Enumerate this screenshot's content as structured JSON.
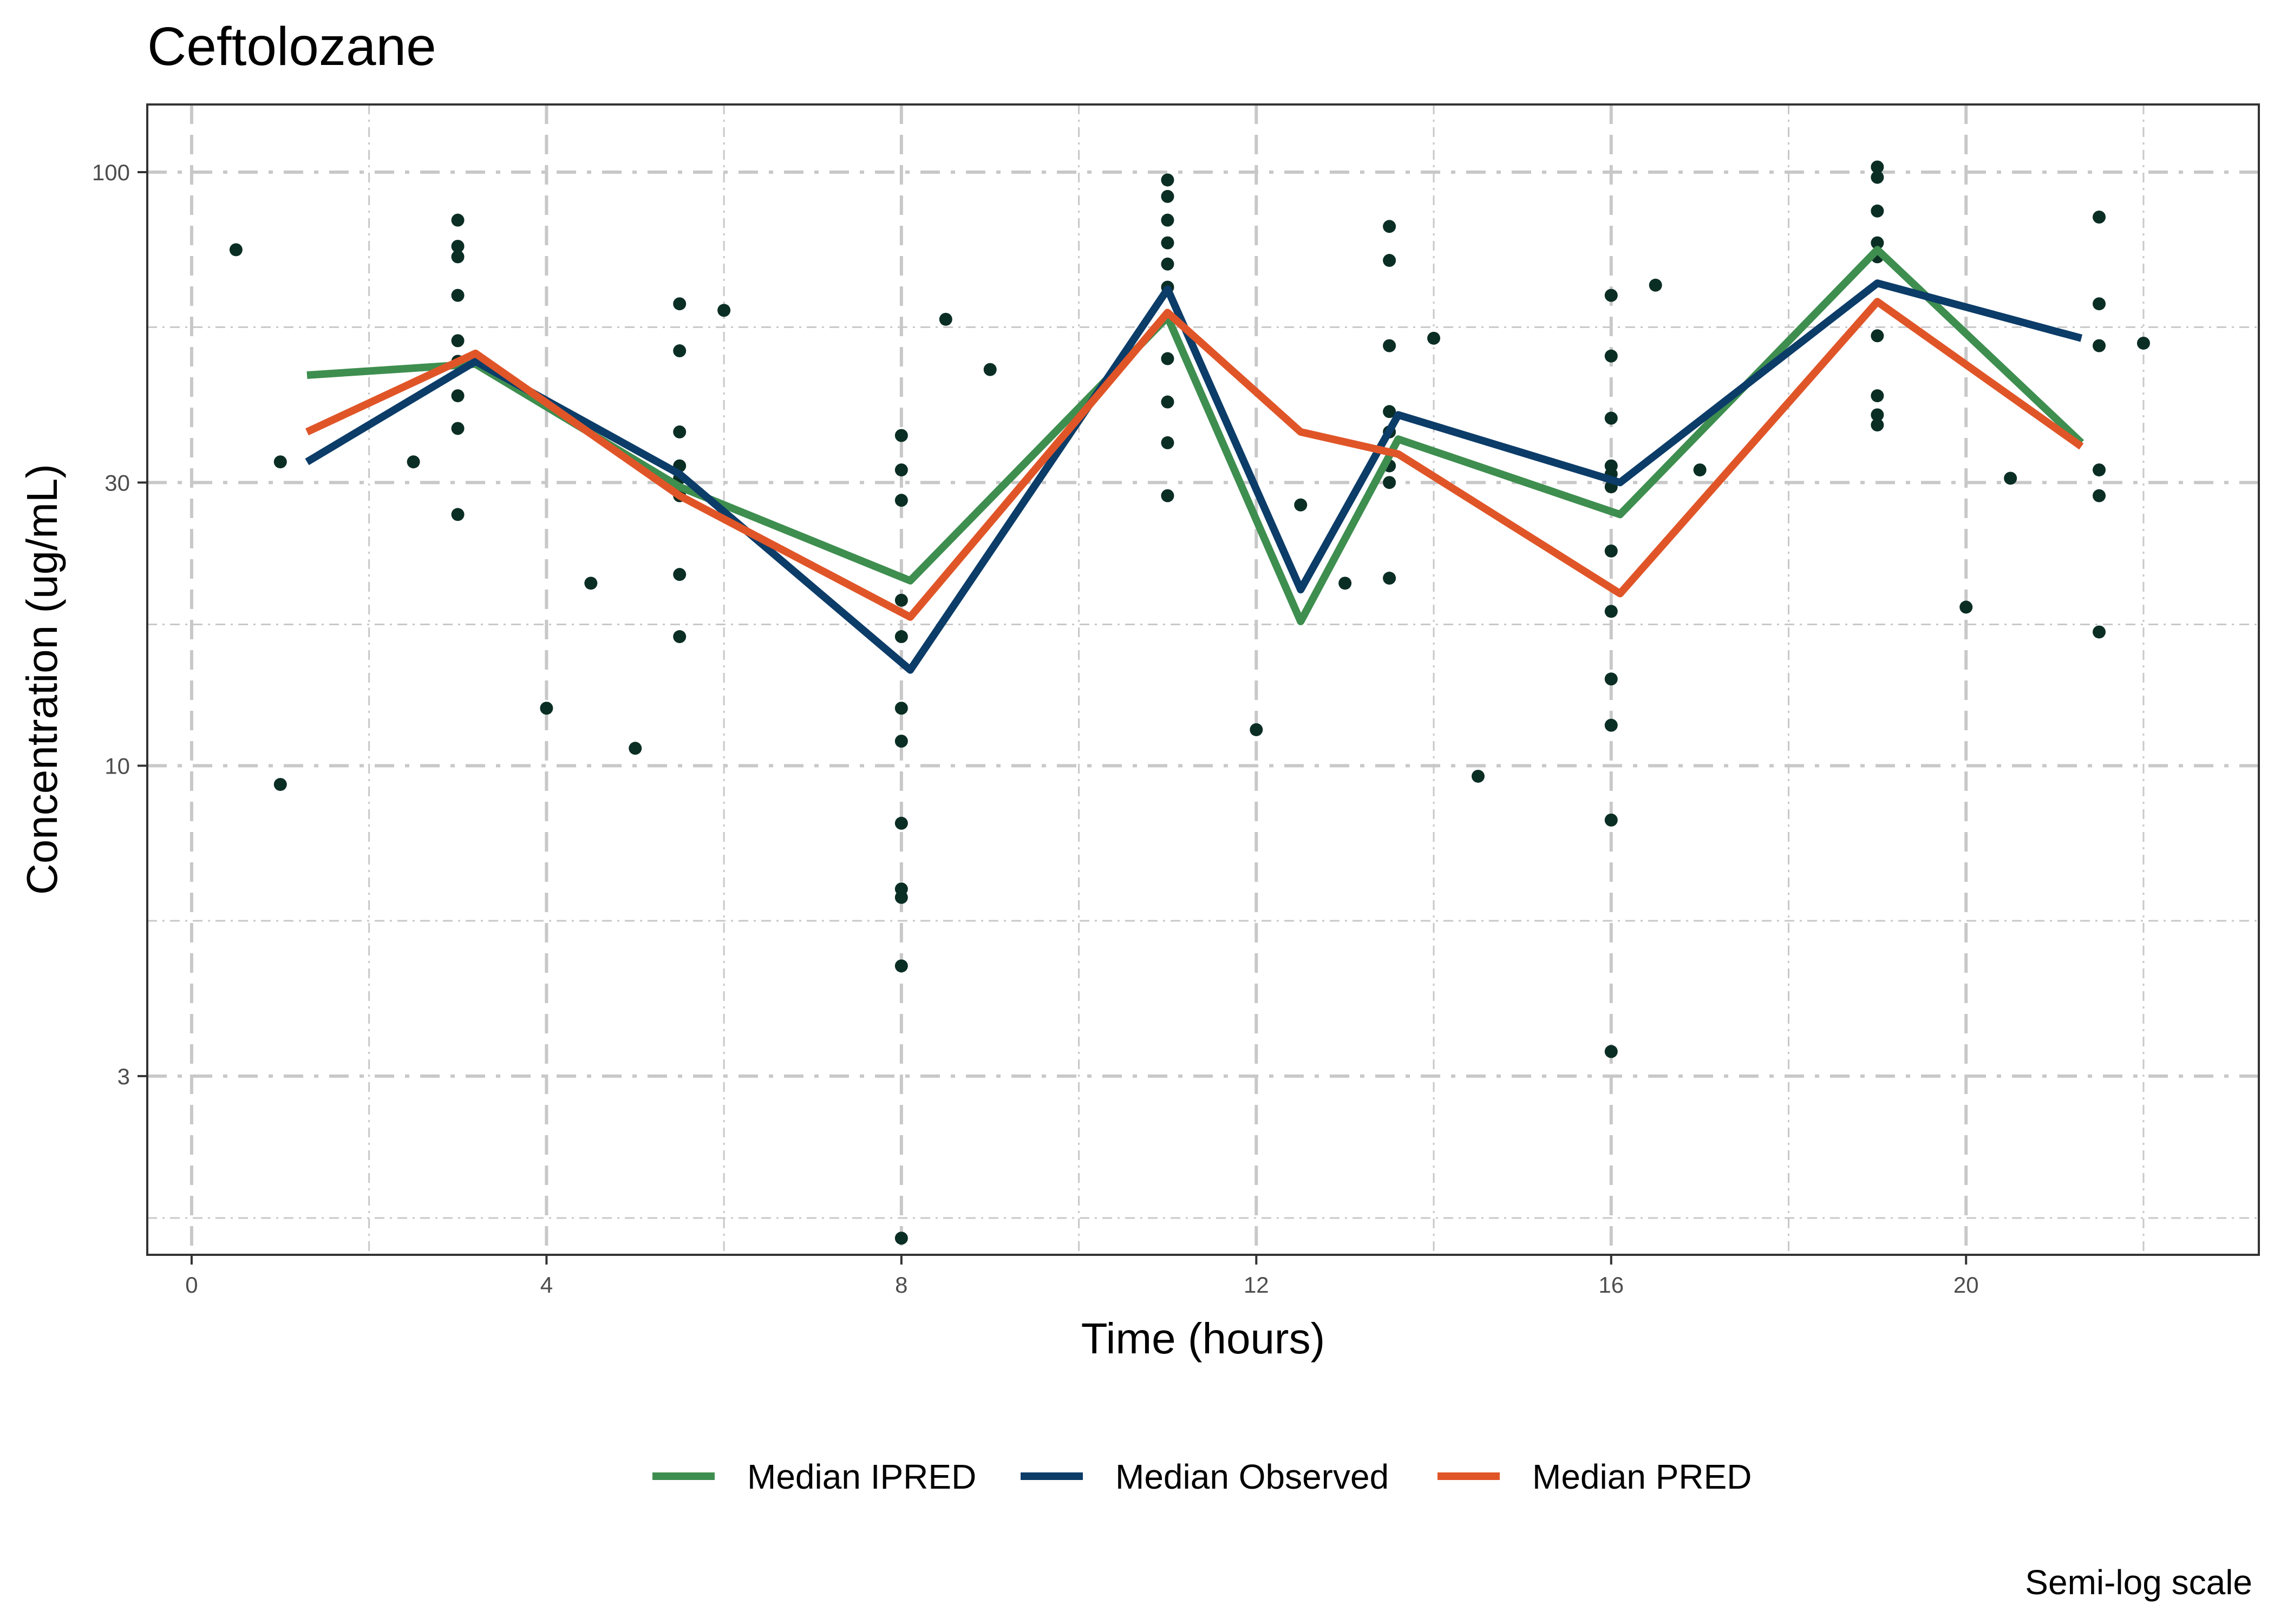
{
  "chart_data": {
    "type": "line",
    "title": "Ceftolozane",
    "xlabel": "Time (hours)",
    "ylabel": "Concentration (ug/mL)",
    "caption": "Semi-log scale",
    "x_scale": "linear",
    "y_scale": "log10",
    "xlim": [
      -0.5,
      23.3
    ],
    "ylim": [
      1.5,
      130
    ],
    "x_ticks": [
      0,
      4,
      8,
      12,
      16,
      20
    ],
    "y_ticks": [
      3,
      10,
      30,
      100
    ],
    "x_minor_ticks": [
      2,
      6,
      10,
      14,
      18,
      22
    ],
    "y_minor_ticks": [
      1.73,
      5.48,
      17.3,
      54.8
    ],
    "grid": true,
    "legend_position": "bottom",
    "series": [
      {
        "name": "Median IPRED",
        "color": "#3e8e4f",
        "x": [
          1.3,
          3.2,
          5.5,
          8.1,
          11.0,
          12.5,
          13.6,
          16.1,
          19.0,
          21.3
        ],
        "y": [
          45.5,
          47.5,
          29.5,
          20.5,
          57.0,
          17.5,
          35.5,
          26.5,
          74.0,
          35.0
        ]
      },
      {
        "name": "Median Observed",
        "color": "#0c3c68",
        "x": [
          1.3,
          3.2,
          5.5,
          8.1,
          11.0,
          12.5,
          13.6,
          16.1,
          19.0,
          21.3
        ],
        "y": [
          32.5,
          48.0,
          31.0,
          14.5,
          63.5,
          19.8,
          39.0,
          30.0,
          65.0,
          52.5
        ]
      },
      {
        "name": "Median PRED",
        "color": "#e05528",
        "x": [
          1.3,
          3.2,
          5.5,
          8.1,
          11.0,
          12.5,
          13.6,
          16.1,
          19.0,
          21.3
        ],
        "y": [
          36.5,
          49.5,
          28.5,
          17.8,
          58.0,
          36.5,
          33.5,
          19.5,
          60.5,
          34.5
        ]
      }
    ],
    "observations": [
      [
        0.5,
        74
      ],
      [
        1.0,
        32.5
      ],
      [
        1.0,
        9.3
      ],
      [
        2.5,
        32.5
      ],
      [
        3.0,
        83
      ],
      [
        3.0,
        75
      ],
      [
        3.0,
        72
      ],
      [
        3.0,
        62
      ],
      [
        3.0,
        52
      ],
      [
        3.0,
        48
      ],
      [
        3.0,
        42
      ],
      [
        3.0,
        37
      ],
      [
        3.0,
        26.5
      ],
      [
        4.0,
        12.5
      ],
      [
        4.5,
        20.3
      ],
      [
        5.0,
        10.7
      ],
      [
        5.5,
        60
      ],
      [
        5.5,
        50
      ],
      [
        5.5,
        36.5
      ],
      [
        5.5,
        32
      ],
      [
        5.5,
        30.5
      ],
      [
        5.5,
        28.5
      ],
      [
        5.5,
        21
      ],
      [
        5.5,
        16.5
      ],
      [
        6.0,
        58.5
      ],
      [
        8.0,
        36
      ],
      [
        8.0,
        31.5
      ],
      [
        8.0,
        28
      ],
      [
        8.0,
        19
      ],
      [
        8.0,
        16.5
      ],
      [
        8.0,
        12.5
      ],
      [
        8.0,
        11
      ],
      [
        8.0,
        8.0
      ],
      [
        8.0,
        6.2
      ],
      [
        8.0,
        6.0
      ],
      [
        8.0,
        4.6
      ],
      [
        8.0,
        1.6
      ],
      [
        8.5,
        56.5
      ],
      [
        9.0,
        46.5
      ],
      [
        11.0,
        97
      ],
      [
        11.0,
        91
      ],
      [
        11.0,
        83
      ],
      [
        11.0,
        76
      ],
      [
        11.0,
        70
      ],
      [
        11.0,
        64
      ],
      [
        11.0,
        48.5
      ],
      [
        11.0,
        41
      ],
      [
        11.0,
        35
      ],
      [
        11.0,
        28.5
      ],
      [
        12.0,
        11.5
      ],
      [
        12.5,
        27.5
      ],
      [
        13.0,
        20.3
      ],
      [
        13.5,
        81
      ],
      [
        13.5,
        71
      ],
      [
        13.5,
        51
      ],
      [
        13.5,
        39.5
      ],
      [
        13.5,
        36.5
      ],
      [
        13.5,
        32
      ],
      [
        13.5,
        30
      ],
      [
        13.5,
        20.7
      ],
      [
        14.0,
        52.5
      ],
      [
        14.5,
        9.6
      ],
      [
        16.0,
        62
      ],
      [
        16.0,
        49
      ],
      [
        16.0,
        38.5
      ],
      [
        16.0,
        32
      ],
      [
        16.0,
        31
      ],
      [
        16.0,
        29.5
      ],
      [
        16.0,
        23
      ],
      [
        16.0,
        18.2
      ],
      [
        16.0,
        14
      ],
      [
        16.0,
        11.7
      ],
      [
        16.0,
        8.1
      ],
      [
        16.0,
        3.3
      ],
      [
        16.5,
        64.5
      ],
      [
        17.0,
        31.5
      ],
      [
        19.0,
        102
      ],
      [
        19.0,
        98
      ],
      [
        19.0,
        86
      ],
      [
        19.0,
        76
      ],
      [
        19.0,
        72
      ],
      [
        19.0,
        53
      ],
      [
        19.0,
        42
      ],
      [
        19.0,
        39
      ],
      [
        19.0,
        37.5
      ],
      [
        20.0,
        18.5
      ],
      [
        20.5,
        30.5
      ],
      [
        21.5,
        84
      ],
      [
        21.5,
        60
      ],
      [
        21.5,
        51
      ],
      [
        21.5,
        31.5
      ],
      [
        21.5,
        28.5
      ],
      [
        21.5,
        16.8
      ],
      [
        22.0,
        51.5
      ]
    ]
  },
  "style": {
    "background": "#ffffff",
    "grid_color": "#c8c8c8",
    "point_color": "#0b2e24",
    "axis_color": "#333333",
    "tick_label_color": "#4d4d4d"
  }
}
